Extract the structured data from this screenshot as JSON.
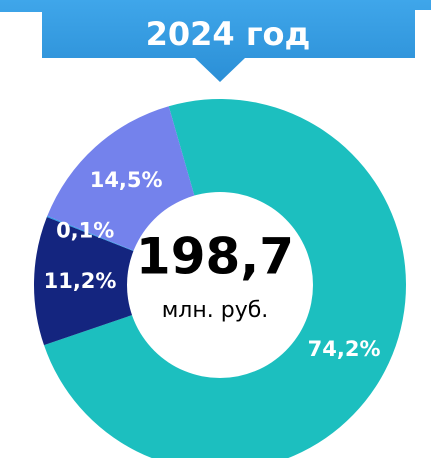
{
  "chart_data": {
    "type": "donut",
    "title": "2024 год",
    "center_value": "198,7",
    "center_label": "млн. руб.",
    "values": [
      74.2,
      11.2,
      0.1,
      14.5
    ],
    "value_labels": [
      "74,2%",
      "11,2%",
      "0,1%",
      "14,5%"
    ],
    "colors": [
      "#1cbfbf",
      "#14257f",
      "#2e9ae4",
      "#7482ec"
    ]
  }
}
